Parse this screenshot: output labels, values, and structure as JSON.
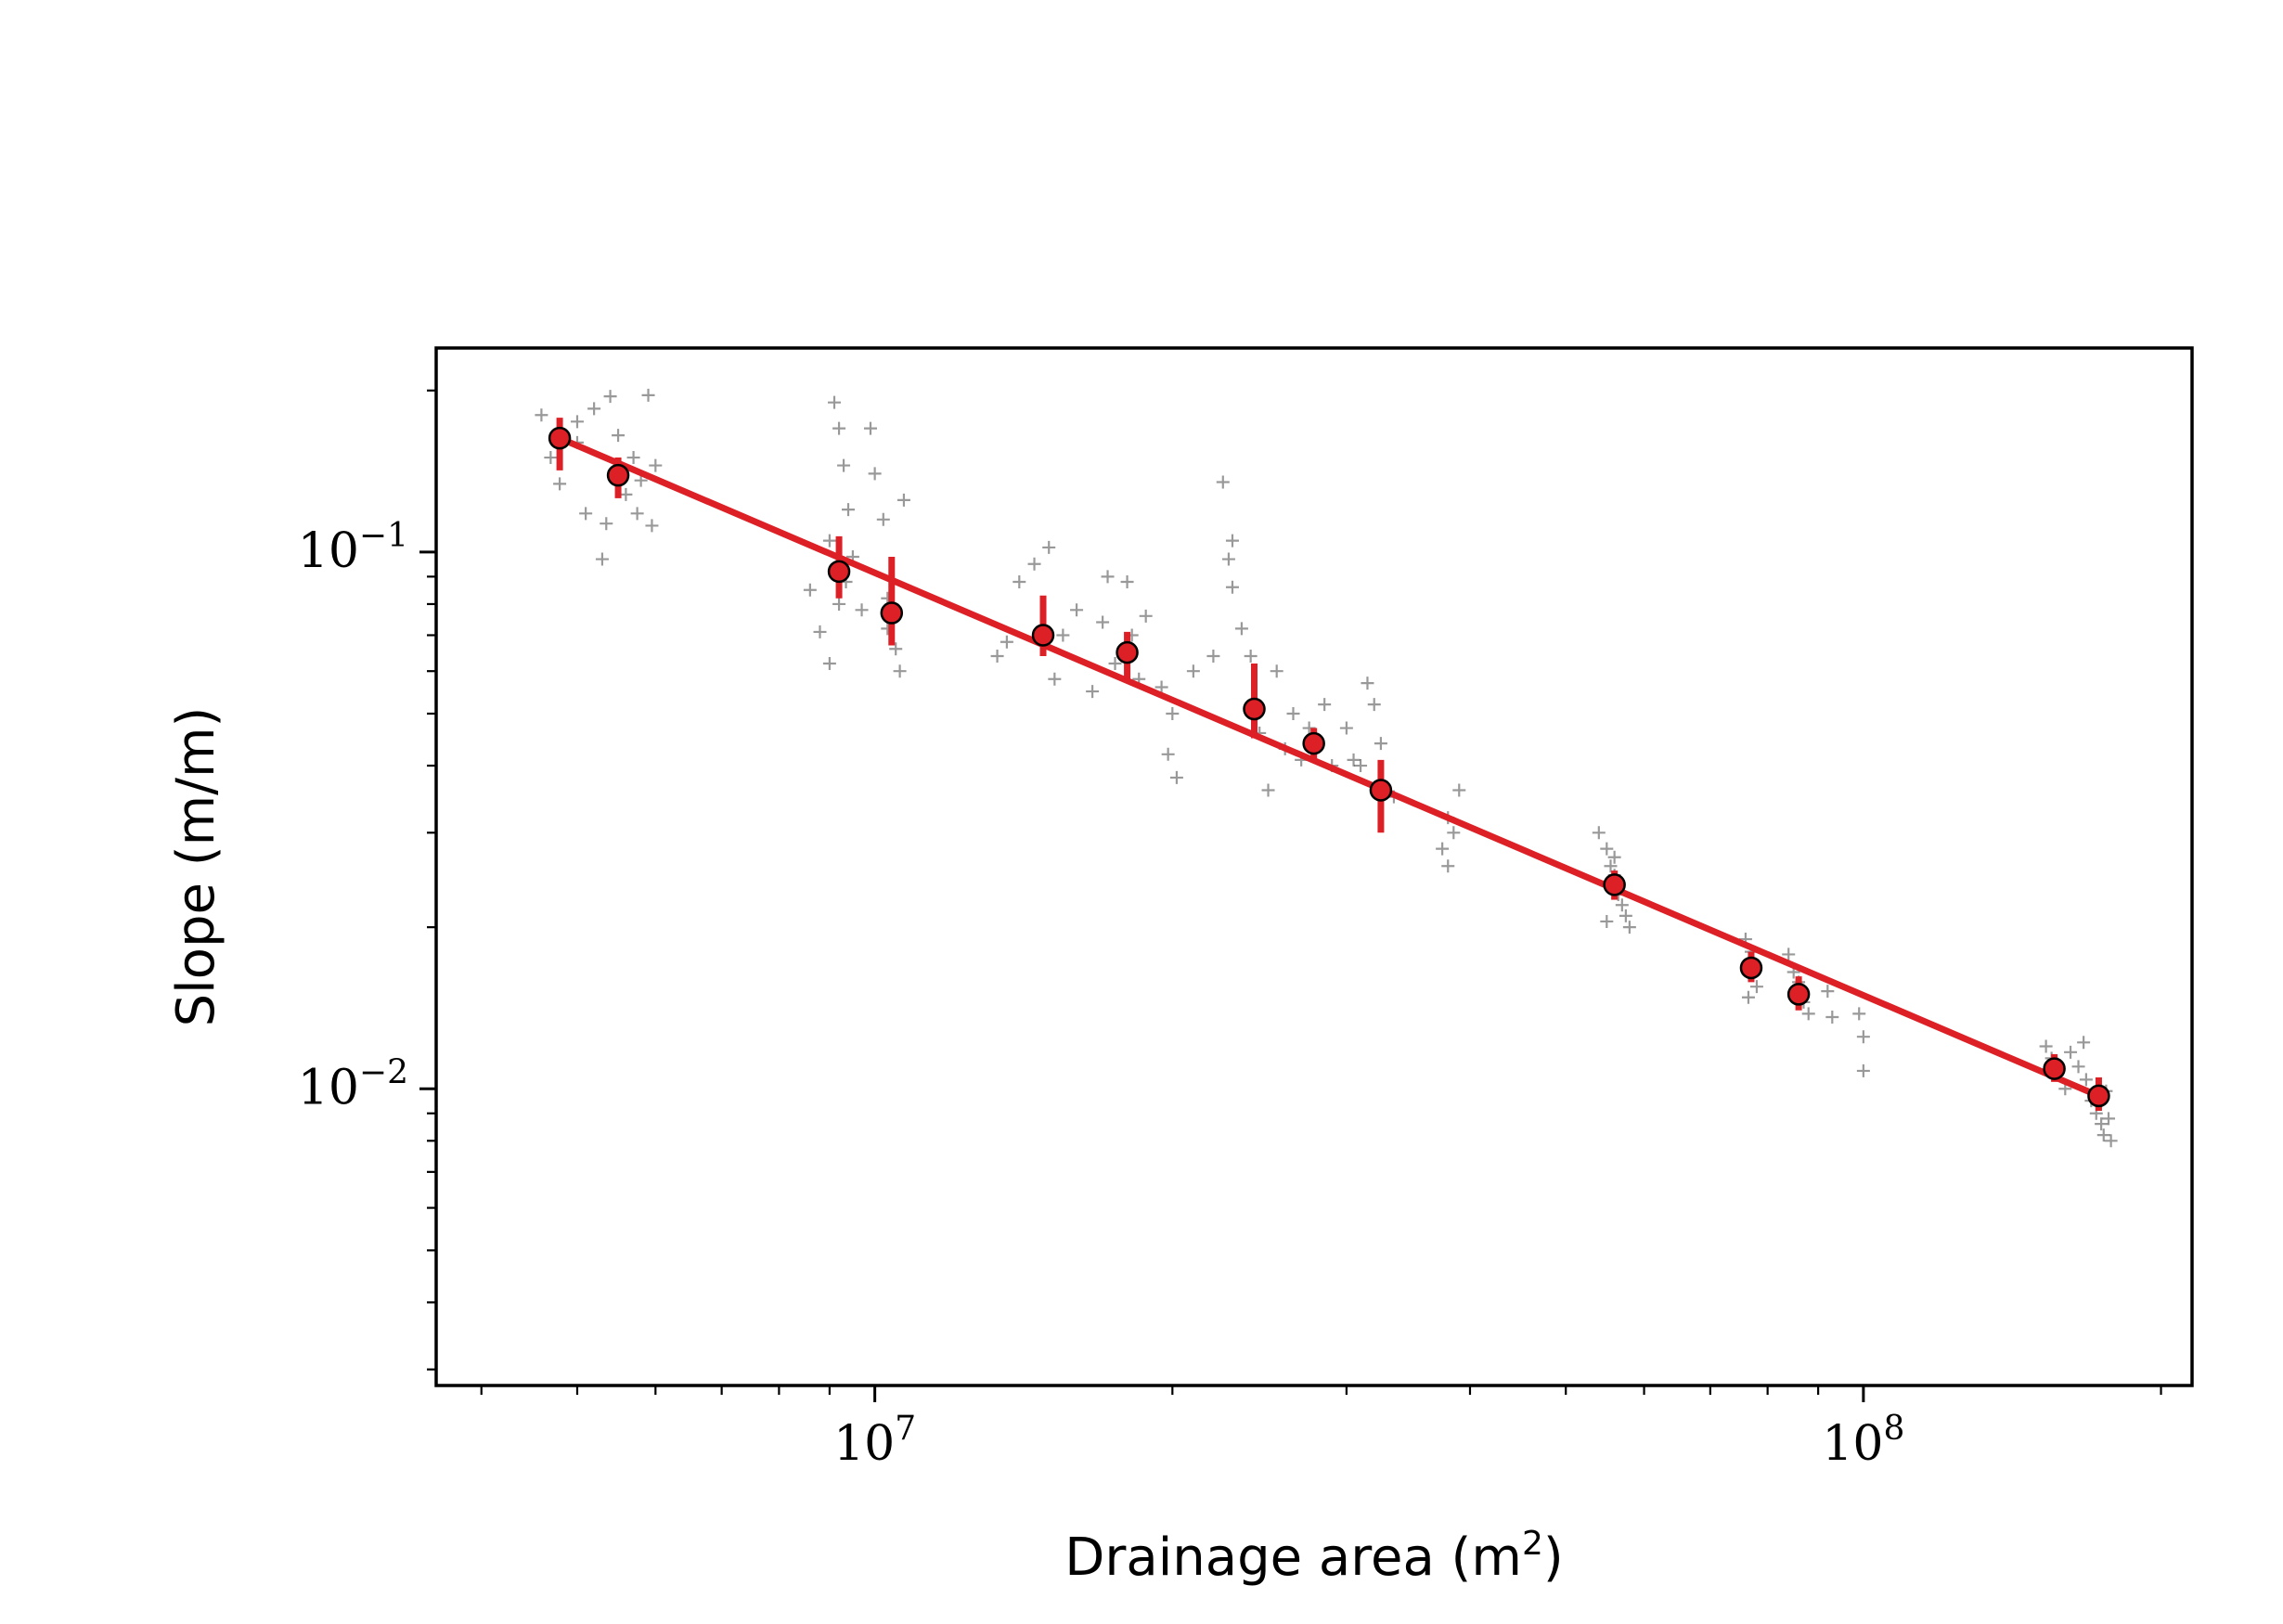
{
  "chart_data": {
    "type": "scatter",
    "title": "",
    "xlabel": "Drainage area (m",
    "xlabel_sup": "2",
    "xlabel_close": ")",
    "ylabel": "Slope (m/m)",
    "xscale": "log",
    "yscale": "log",
    "xlim": [
      3600000.0,
      215000000.0
    ],
    "ylim": [
      0.0028,
      0.24
    ],
    "grid": false,
    "legend": "none",
    "x_ticks": [
      {
        "value": 10000000.0,
        "base": "10",
        "exp": "7"
      },
      {
        "value": 100000000.0,
        "base": "10",
        "exp": "8"
      }
    ],
    "y_ticks": [
      {
        "value": 0.1,
        "base": "10",
        "exp": "−1"
      },
      {
        "value": 0.01,
        "base": "10",
        "exp": "−2"
      }
    ],
    "colors": {
      "fit_line": "#dd1f26",
      "binned": "#dd1f26",
      "raw": "#000000"
    },
    "series": [
      {
        "kind": "binned_mean_with_error",
        "points": [
          {
            "x": 4800000.0,
            "y": 0.163,
            "ylo": 0.142,
            "yhi": 0.178
          },
          {
            "x": 5500000.0,
            "y": 0.139,
            "ylo": 0.126,
            "yhi": 0.15
          },
          {
            "x": 9200000.0,
            "y": 0.092,
            "ylo": 0.082,
            "yhi": 0.107
          },
          {
            "x": 10400000.0,
            "y": 0.077,
            "ylo": 0.067,
            "yhi": 0.098
          },
          {
            "x": 14800000.0,
            "y": 0.07,
            "ylo": 0.064,
            "yhi": 0.083
          },
          {
            "x": 18000000.0,
            "y": 0.065,
            "ylo": 0.058,
            "yhi": 0.071
          },
          {
            "x": 24200000.0,
            "y": 0.051,
            "ylo": 0.045,
            "yhi": 0.062
          },
          {
            "x": 27800000.0,
            "y": 0.044,
            "ylo": 0.041,
            "yhi": 0.047
          },
          {
            "x": 32500000.0,
            "y": 0.036,
            "ylo": 0.03,
            "yhi": 0.041
          },
          {
            "x": 56000000.0,
            "y": 0.024,
            "ylo": 0.0225,
            "yhi": 0.0255
          },
          {
            "x": 77000000.0,
            "y": 0.0168,
            "ylo": 0.0158,
            "yhi": 0.018
          },
          {
            "x": 86000000.0,
            "y": 0.015,
            "ylo": 0.014,
            "yhi": 0.0162
          },
          {
            "x": 156000000.0,
            "y": 0.0109,
            "ylo": 0.0103,
            "yhi": 0.0116
          },
          {
            "x": 173000000.0,
            "y": 0.0097,
            "ylo": 0.0091,
            "yhi": 0.0105
          }
        ]
      },
      {
        "kind": "power_law_fit",
        "x": [
          4800000.0,
          173000000.0
        ],
        "y": [
          0.163,
          0.0097
        ]
      },
      {
        "kind": "raw_points",
        "marker": "+",
        "points": [
          [
            4600000.0,
            0.18
          ],
          [
            4700000.0,
            0.15
          ],
          [
            4800000.0,
            0.134
          ],
          [
            5000000.0,
            0.175
          ],
          [
            5100000.0,
            0.118
          ],
          [
            5200000.0,
            0.185
          ],
          [
            5300000.0,
            0.097
          ],
          [
            5400000.0,
            0.195
          ],
          [
            5500000.0,
            0.165
          ],
          [
            5600000.0,
            0.128
          ],
          [
            5700000.0,
            0.15
          ],
          [
            5800000.0,
            0.136
          ],
          [
            5900000.0,
            0.196
          ],
          [
            5950000.0,
            0.112
          ],
          [
            6000000.0,
            0.145
          ],
          [
            5000000.0,
            0.16
          ],
          [
            5350000.0,
            0.113
          ],
          [
            5750000.0,
            0.118
          ],
          [
            8600000.0,
            0.085
          ],
          [
            8800000.0,
            0.071
          ],
          [
            9000000.0,
            0.062
          ],
          [
            9100000.0,
            0.19
          ],
          [
            9200000.0,
            0.17
          ],
          [
            9300000.0,
            0.145
          ],
          [
            9400000.0,
            0.12
          ],
          [
            9350000.0,
            0.088
          ],
          [
            9500000.0,
            0.098
          ],
          [
            9200000.0,
            0.08
          ],
          [
            9000000.0,
            0.105
          ],
          [
            9900000.0,
            0.17
          ],
          [
            10000000.0,
            0.14
          ],
          [
            10200000.0,
            0.115
          ],
          [
            10300000.0,
            0.072
          ],
          [
            10500000.0,
            0.066
          ],
          [
            10600000.0,
            0.06
          ],
          [
            10700000.0,
            0.125
          ],
          [
            10300000.0,
            0.082
          ],
          [
            9700000.0,
            0.078
          ],
          [
            13300000.0,
            0.064
          ],
          [
            13600000.0,
            0.068
          ],
          [
            14000000.0,
            0.088
          ],
          [
            14500000.0,
            0.095
          ],
          [
            15000000.0,
            0.102
          ],
          [
            15200000.0,
            0.058
          ],
          [
            15500000.0,
            0.07
          ],
          [
            16000000.0,
            0.078
          ],
          [
            16600000.0,
            0.055
          ],
          [
            17000000.0,
            0.074
          ],
          [
            17200000.0,
            0.09
          ],
          [
            17500000.0,
            0.062
          ],
          [
            18000000.0,
            0.088
          ],
          [
            18200000.0,
            0.07
          ],
          [
            18500000.0,
            0.058
          ],
          [
            18800000.0,
            0.076
          ],
          [
            19500000.0,
            0.056
          ],
          [
            20000000.0,
            0.05
          ],
          [
            19800000.0,
            0.042
          ],
          [
            20200000.0,
            0.038
          ],
          [
            21000000.0,
            0.06
          ],
          [
            22000000.0,
            0.064
          ],
          [
            22500000.0,
            0.135
          ],
          [
            23000000.0,
            0.105
          ],
          [
            22800000.0,
            0.097
          ],
          [
            23000000.0,
            0.086
          ],
          [
            23500000.0,
            0.072
          ],
          [
            24000000.0,
            0.064
          ],
          [
            24500000.0,
            0.046
          ],
          [
            25000000.0,
            0.036
          ],
          [
            25500000.0,
            0.06
          ],
          [
            26000000.0,
            0.043
          ],
          [
            26500000.0,
            0.05
          ],
          [
            27000000.0,
            0.041
          ],
          [
            27500000.0,
            0.047
          ],
          [
            28500000.0,
            0.052
          ],
          [
            29000000.0,
            0.04
          ],
          [
            30000000.0,
            0.047
          ],
          [
            30500000.0,
            0.041
          ],
          [
            31000000.0,
            0.04
          ],
          [
            31500000.0,
            0.057
          ],
          [
            32000000.0,
            0.052
          ],
          [
            32500000.0,
            0.044
          ],
          [
            33500000.0,
            0.035
          ],
          [
            37500000.0,
            0.028
          ],
          [
            38000000.0,
            0.026
          ],
          [
            38500000.0,
            0.03
          ],
          [
            39000000.0,
            0.036
          ],
          [
            38000000.0,
            0.032
          ],
          [
            54000000.0,
            0.03
          ],
          [
            55000000.0,
            0.028
          ],
          [
            55500000.0,
            0.026
          ],
          [
            56000000.0,
            0.025
          ],
          [
            56500000.0,
            0.023
          ],
          [
            57000000.0,
            0.022
          ],
          [
            57500000.0,
            0.021
          ],
          [
            55000000.0,
            0.0205
          ],
          [
            58000000.0,
            0.02
          ],
          [
            56000000.0,
            0.027
          ],
          [
            76000000.0,
            0.019
          ],
          [
            77000000.0,
            0.018
          ],
          [
            77500000.0,
            0.0165
          ],
          [
            78000000.0,
            0.0155
          ],
          [
            76500000.0,
            0.0148
          ],
          [
            84000000.0,
            0.0178
          ],
          [
            85000000.0,
            0.0165
          ],
          [
            86000000.0,
            0.0158
          ],
          [
            87000000.0,
            0.0145
          ],
          [
            88000000.0,
            0.0138
          ],
          [
            92000000.0,
            0.0152
          ],
          [
            93000000.0,
            0.0136
          ],
          [
            99000000.0,
            0.0138
          ],
          [
            100000000.0,
            0.0125
          ],
          [
            100000000.0,
            0.0108
          ],
          [
            153000000.0,
            0.012
          ],
          [
            155000000.0,
            0.0114
          ],
          [
            157000000.0,
            0.0106
          ],
          [
            160000000.0,
            0.01
          ],
          [
            162000000.0,
            0.0117
          ],
          [
            165000000.0,
            0.011
          ],
          [
            167000000.0,
            0.0122
          ],
          [
            168000000.0,
            0.0104
          ],
          [
            170000000.0,
            0.0095
          ],
          [
            172000000.0,
            0.009
          ],
          [
            174000000.0,
            0.0086
          ],
          [
            175000000.0,
            0.0082
          ],
          [
            177000000.0,
            0.0088
          ],
          [
            178000000.0,
            0.008
          ],
          [
            176000000.0,
            0.0099
          ]
        ]
      }
    ]
  }
}
